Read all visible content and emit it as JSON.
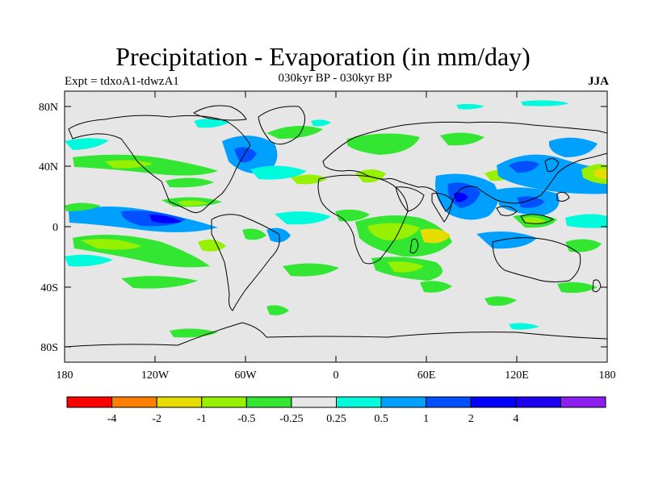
{
  "title": "Precipitation - Evaporation (in mm/day)",
  "subtitle": "030kyr BP - 030kyr BP",
  "experiment_label": "Expt = tdxoA1-tdwzA1",
  "season_label": "JJA",
  "map": {
    "projection": "cylindrical equidistant",
    "background_color": "#e6e6e6",
    "lat_ticks": [
      "80N",
      "40N",
      "0",
      "40S",
      "80S"
    ],
    "lon_ticks": [
      "180",
      "120W",
      "60W",
      "0",
      "60E",
      "120E",
      "180"
    ]
  },
  "colorbar": {
    "colors": [
      "#ff0000",
      "#ff8000",
      "#e6dc00",
      "#96f000",
      "#32e632",
      "#e6e6e6",
      "#00fadc",
      "#00a0ff",
      "#0050ff",
      "#0000ff",
      "#1e00f0",
      "#8c1ef0"
    ],
    "labels": [
      "-4",
      "-2",
      "-1",
      "-0.5",
      "-0.25",
      "0.25",
      "0.5",
      "1",
      "2",
      "4"
    ]
  }
}
